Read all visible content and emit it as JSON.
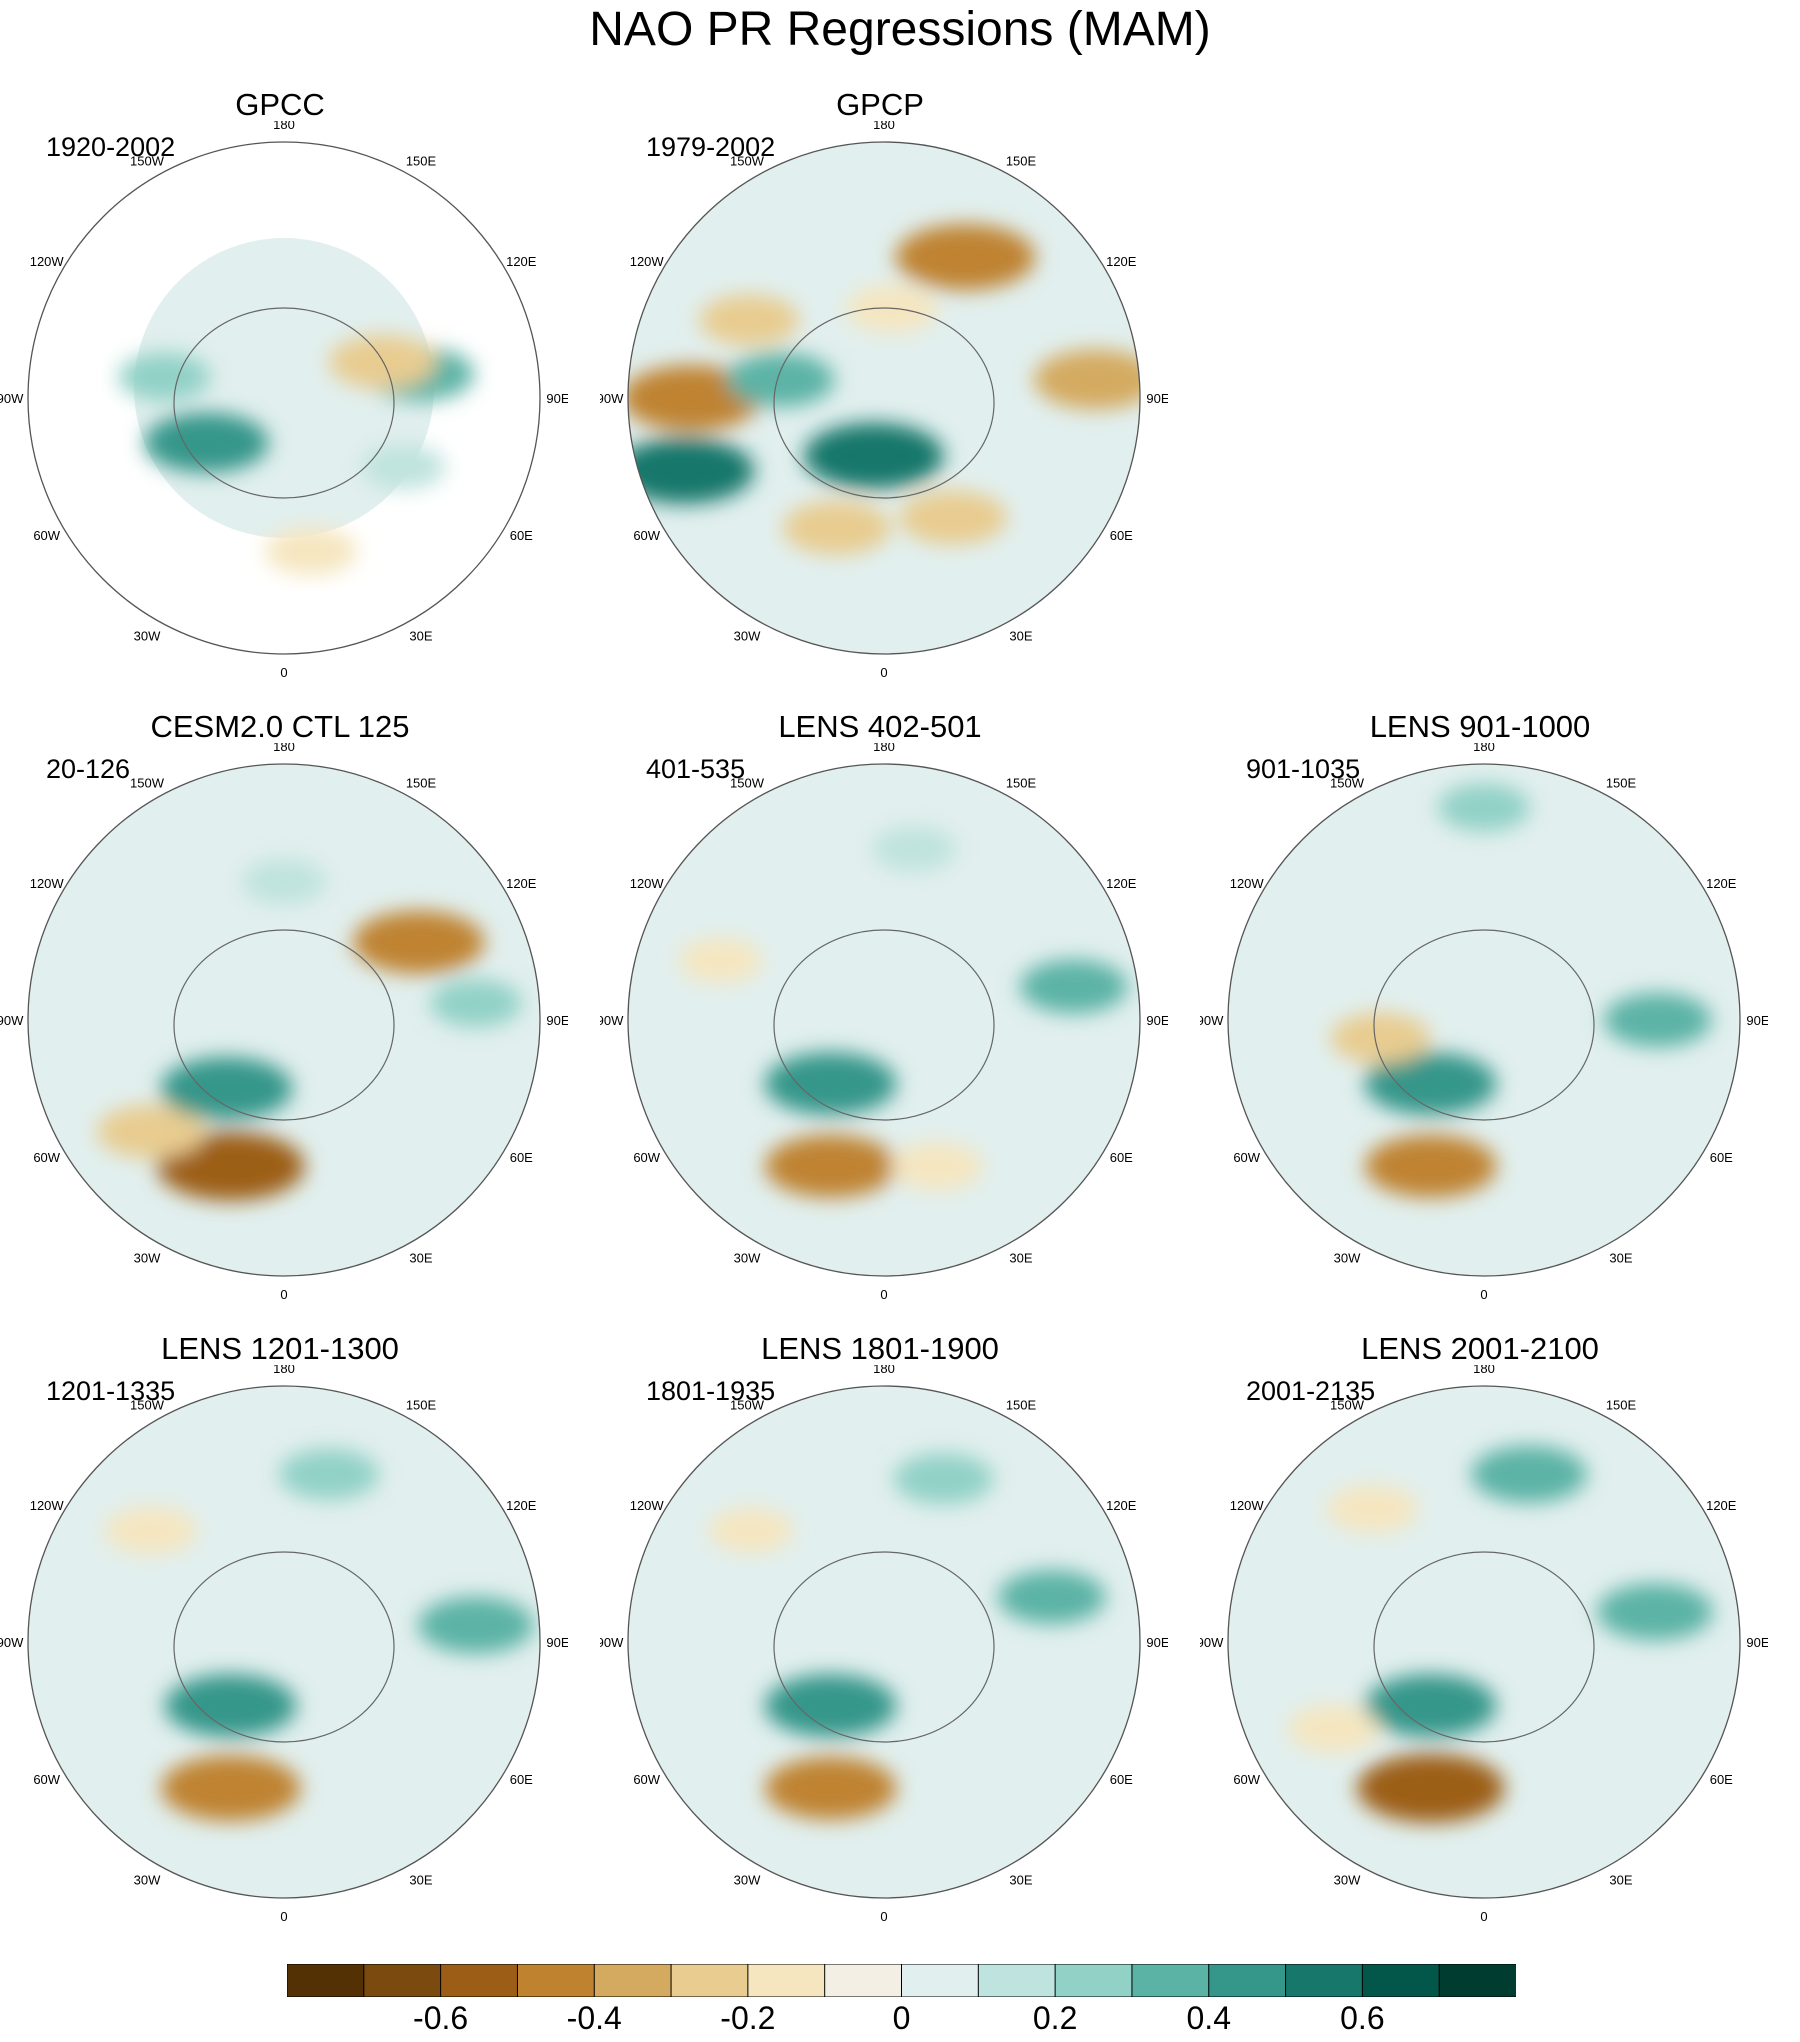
{
  "title": "NAO PR Regressions (MAM)",
  "longitude_labels": [
    "180",
    "150E",
    "120E",
    "90E",
    "60E",
    "30E",
    "0",
    "30W",
    "60W",
    "90W",
    "120W",
    "150W"
  ],
  "panels": [
    {
      "title": "GPCC",
      "years": "1920-2002",
      "land_only": true,
      "features": [
        {
          "lon": 100,
          "lat": 45,
          "v": 0.3
        },
        {
          "lon": 110,
          "lat": 55,
          "v": -0.3
        },
        {
          "lon": 10,
          "lat": 40,
          "v": -0.2
        },
        {
          "lon": -100,
          "lat": 50,
          "v": 0.2
        },
        {
          "lon": 60,
          "lat": 45,
          "v": 0.15
        },
        {
          "lon": -60,
          "lat": 60,
          "v": 0.4
        }
      ]
    },
    {
      "title": "GPCP",
      "years": "1979-2002",
      "land_only": false,
      "features": [
        {
          "lon": 150,
          "lat": 38,
          "v": -0.5
        },
        {
          "lon": -90,
          "lat": 30,
          "v": -0.5
        },
        {
          "lon": -70,
          "lat": 25,
          "v": 0.5
        },
        {
          "lon": -20,
          "lat": 45,
          "v": -0.3
        },
        {
          "lon": 30,
          "lat": 45,
          "v": -0.3
        },
        {
          "lon": -10,
          "lat": 70,
          "v": 0.5
        },
        {
          "lon": 95,
          "lat": 25,
          "v": -0.4
        },
        {
          "lon": -120,
          "lat": 40,
          "v": -0.25
        },
        {
          "lon": 175,
          "lat": 60,
          "v": -0.2
        },
        {
          "lon": -100,
          "lat": 55,
          "v": 0.3
        }
      ]
    },
    {
      "title": "CESM2.0 CTL 125",
      "years": "20-126",
      "land_only": false,
      "features": [
        {
          "lon": -20,
          "lat": 40,
          "v": -0.55
        },
        {
          "lon": -50,
          "lat": 35,
          "v": -0.3
        },
        {
          "lon": -40,
          "lat": 60,
          "v": 0.45
        },
        {
          "lon": 120,
          "lat": 40,
          "v": -0.45
        },
        {
          "lon": 95,
          "lat": 30,
          "v": 0.2
        },
        {
          "lon": 180,
          "lat": 45,
          "v": 0.15
        }
      ]
    },
    {
      "title": "LENS 402-501",
      "years": "401-535",
      "land_only": false,
      "features": [
        {
          "lon": -20,
          "lat": 40,
          "v": -0.45
        },
        {
          "lon": -40,
          "lat": 62,
          "v": 0.45
        },
        {
          "lon": 100,
          "lat": 30,
          "v": 0.3
        },
        {
          "lon": 170,
          "lat": 35,
          "v": 0.15
        },
        {
          "lon": -110,
          "lat": 35,
          "v": -0.15
        },
        {
          "lon": 20,
          "lat": 40,
          "v": -0.2
        }
      ]
    },
    {
      "title": "LENS 901-1000",
      "years": "901-1035",
      "land_only": false,
      "features": [
        {
          "lon": -20,
          "lat": 40,
          "v": -0.45
        },
        {
          "lon": -40,
          "lat": 62,
          "v": 0.45
        },
        {
          "lon": 90,
          "lat": 35,
          "v": 0.3
        },
        {
          "lon": 180,
          "lat": 25,
          "v": 0.2
        },
        {
          "lon": -80,
          "lat": 55,
          "v": -0.25
        }
      ]
    },
    {
      "title": "LENS 1201-1300",
      "years": "1201-1335",
      "land_only": false,
      "features": [
        {
          "lon": -20,
          "lat": 40,
          "v": -0.5
        },
        {
          "lon": -40,
          "lat": 62,
          "v": 0.45
        },
        {
          "lon": 95,
          "lat": 30,
          "v": 0.35
        },
        {
          "lon": 165,
          "lat": 35,
          "v": 0.25
        },
        {
          "lon": -130,
          "lat": 35,
          "v": -0.2
        }
      ]
    },
    {
      "title": "LENS 1801-1900",
      "years": "1801-1935",
      "land_only": false,
      "features": [
        {
          "lon": -20,
          "lat": 40,
          "v": -0.45
        },
        {
          "lon": -40,
          "lat": 62,
          "v": 0.45
        },
        {
          "lon": 105,
          "lat": 35,
          "v": 0.3
        },
        {
          "lon": 160,
          "lat": 35,
          "v": 0.25
        },
        {
          "lon": -130,
          "lat": 35,
          "v": -0.15
        }
      ]
    },
    {
      "title": "LENS 2001-2100",
      "years": "2001-2135",
      "land_only": false,
      "features": [
        {
          "lon": -20,
          "lat": 40,
          "v": -0.55
        },
        {
          "lon": -40,
          "lat": 62,
          "v": 0.45
        },
        {
          "lon": 165,
          "lat": 35,
          "v": 0.35
        },
        {
          "lon": 100,
          "lat": 35,
          "v": 0.35
        },
        {
          "lon": -140,
          "lat": 35,
          "v": -0.2
        },
        {
          "lon": -60,
          "lat": 35,
          "v": -0.2
        }
      ]
    }
  ],
  "colorbar": {
    "levels": [
      -0.7,
      -0.6,
      -0.5,
      -0.4,
      -0.3,
      -0.2,
      -0.1,
      0,
      0.1,
      0.2,
      0.3,
      0.4,
      0.5,
      0.6,
      0.7
    ],
    "colors": [
      "#543005",
      "#7a4a0f",
      "#9c5e17",
      "#bf8330",
      "#d4aa60",
      "#e8cc90",
      "#f5e6c0",
      "#f3efe4",
      "#e1efee",
      "#bfe3de",
      "#91d1c6",
      "#5bb3a6",
      "#35968a",
      "#17776a",
      "#03574a",
      "#003c30"
    ],
    "tick_labels": [
      "-0.6",
      "-0.4",
      "-0.2",
      "0",
      "0.2",
      "0.4",
      "0.6"
    ],
    "tick_values": [
      -0.6,
      -0.4,
      -0.2,
      0,
      0.2,
      0.4,
      0.6
    ]
  }
}
